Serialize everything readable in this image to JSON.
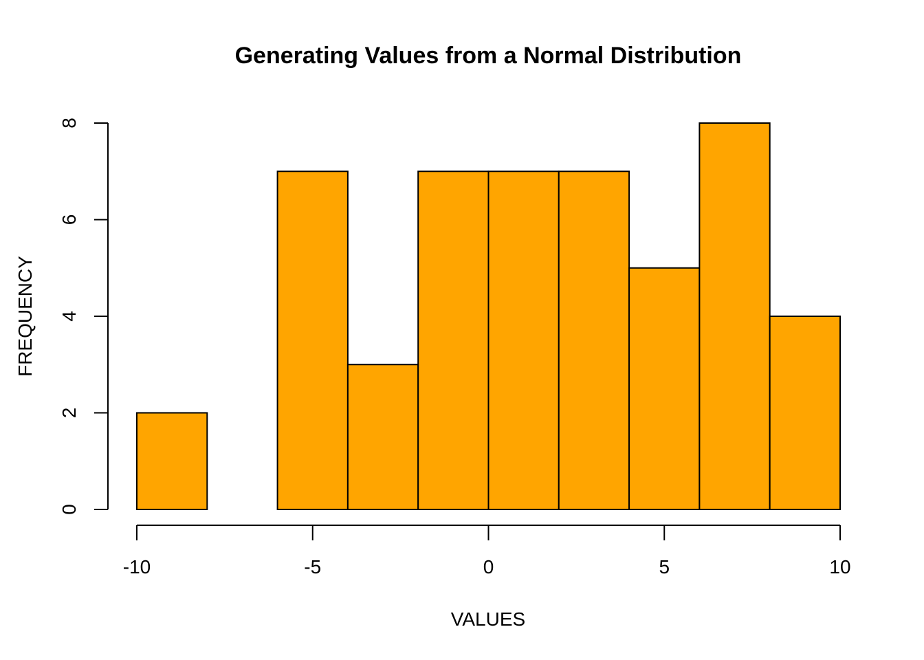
{
  "chart_data": {
    "type": "bar",
    "title": "Generating Values from a  Normal Distribution",
    "xlabel": "VALUES",
    "ylabel": "FREQUENCY",
    "bar_color": "#FFA500",
    "bins": [
      {
        "start": -10,
        "end": -8,
        "count": 2
      },
      {
        "start": -8,
        "end": -6,
        "count": 0
      },
      {
        "start": -6,
        "end": -4,
        "count": 7
      },
      {
        "start": -4,
        "end": -2,
        "count": 3
      },
      {
        "start": -2,
        "end": 0,
        "count": 7
      },
      {
        "start": 0,
        "end": 2,
        "count": 7
      },
      {
        "start": 2,
        "end": 4,
        "count": 7
      },
      {
        "start": 4,
        "end": 6,
        "count": 5
      },
      {
        "start": 6,
        "end": 8,
        "count": 8
      },
      {
        "start": 8,
        "end": 10,
        "count": 4
      }
    ],
    "xlim": [
      -10,
      10
    ],
    "ylim": [
      0,
      8
    ],
    "x_ticks": [
      "-10",
      "-5",
      "0",
      "5",
      "10"
    ],
    "y_ticks": [
      "0",
      "2",
      "4",
      "6",
      "8"
    ],
    "grid": false,
    "legend": "none"
  }
}
